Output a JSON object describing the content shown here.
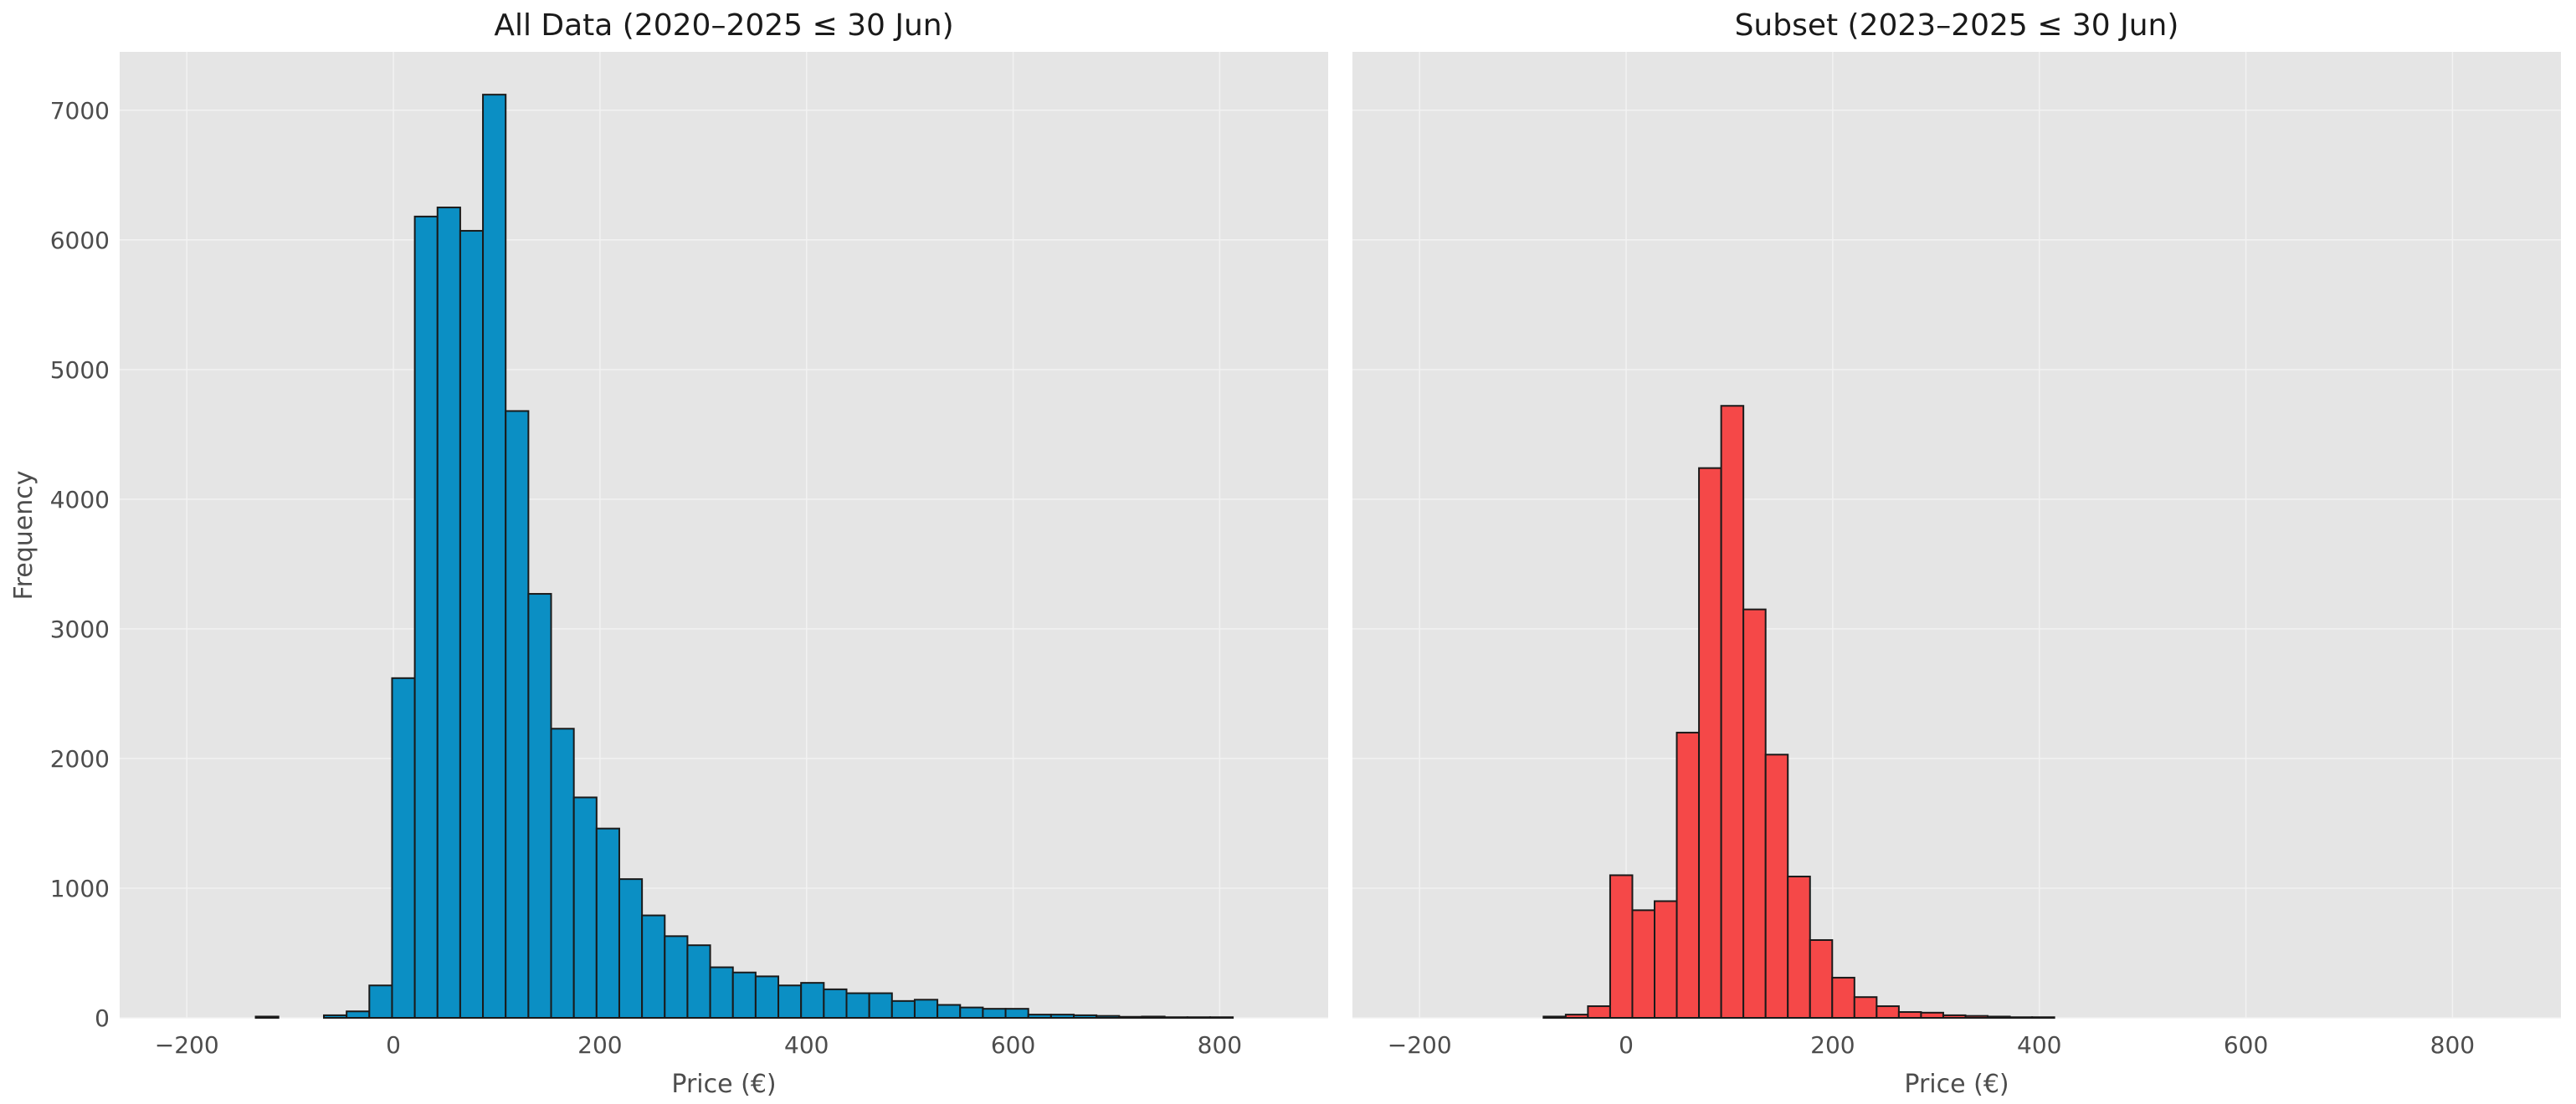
{
  "chart_data": [
    {
      "type": "bar",
      "title": "All Data (2020–2025 ≤ 30 Jun)",
      "xlabel": "Price (€)",
      "ylabel": "Frequency",
      "xlim": [
        -265,
        905
      ],
      "ylim": [
        0,
        7450
      ],
      "xticks": [
        -200,
        0,
        200,
        400,
        600,
        800
      ],
      "yticks": [
        0,
        1000,
        2000,
        3000,
        4000,
        5000,
        6000,
        7000
      ],
      "xtick_labels": [
        "−200",
        "0",
        "200",
        "400",
        "600",
        "800"
      ],
      "ytick_labels": [
        "0",
        "1000",
        "2000",
        "3000",
        "4000",
        "5000",
        "6000",
        "7000"
      ],
      "grid": true,
      "color": "#0b8fc4",
      "bin_edges": [
        -133.3,
        -111.3,
        -89.3,
        -67.3,
        -45.3,
        -23.3,
        -1.3,
        20.7,
        42.7,
        64.7,
        86.7,
        108.7,
        130.7,
        152.7,
        174.7,
        196.7,
        218.7,
        240.7,
        262.7,
        284.7,
        306.7,
        328.7,
        350.7,
        372.7,
        394.7,
        416.7,
        438.7,
        460.7,
        482.7,
        504.7,
        526.7,
        548.7,
        570.7,
        592.7,
        614.7,
        636.7,
        658.7,
        680.7,
        702.7,
        724.7,
        746.7,
        768.7,
        790.7,
        812.7
      ],
      "values": [
        10,
        0,
        0,
        20,
        50,
        250,
        2620,
        6180,
        6250,
        6070,
        7120,
        4680,
        3270,
        2230,
        1700,
        1460,
        1070,
        790,
        630,
        560,
        390,
        350,
        320,
        250,
        270,
        220,
        190,
        190,
        130,
        140,
        100,
        80,
        70,
        70,
        25,
        25,
        20,
        15,
        8,
        10,
        5,
        5,
        5
      ]
    },
    {
      "type": "bar",
      "title": "Subset (2023–2025 ≤ 30 Jun)",
      "xlabel": "Price (€)",
      "ylabel": "",
      "xlim": [
        -265,
        905
      ],
      "ylim": [
        0,
        7450
      ],
      "xticks": [
        -200,
        0,
        200,
        400,
        600,
        800
      ],
      "yticks": [
        0,
        1000,
        2000,
        3000,
        4000,
        5000,
        6000,
        7000
      ],
      "xtick_labels": [
        "−200",
        "0",
        "200",
        "400",
        "600",
        "800"
      ],
      "ytick_labels": [],
      "grid": true,
      "color": "#f54848",
      "bin_edges": [
        -80,
        -58.5,
        -37,
        -15.5,
        6,
        27.5,
        49,
        70.5,
        92,
        113.5,
        135,
        156.5,
        178,
        199.5,
        221,
        242.5,
        264,
        285.5,
        307,
        328.5,
        350,
        371.5,
        393,
        414.5
      ],
      "values": [
        10,
        25,
        90,
        1100,
        830,
        900,
        2200,
        4240,
        4720,
        3150,
        2030,
        1090,
        600,
        310,
        160,
        90,
        45,
        40,
        20,
        15,
        10,
        5,
        5
      ]
    }
  ]
}
